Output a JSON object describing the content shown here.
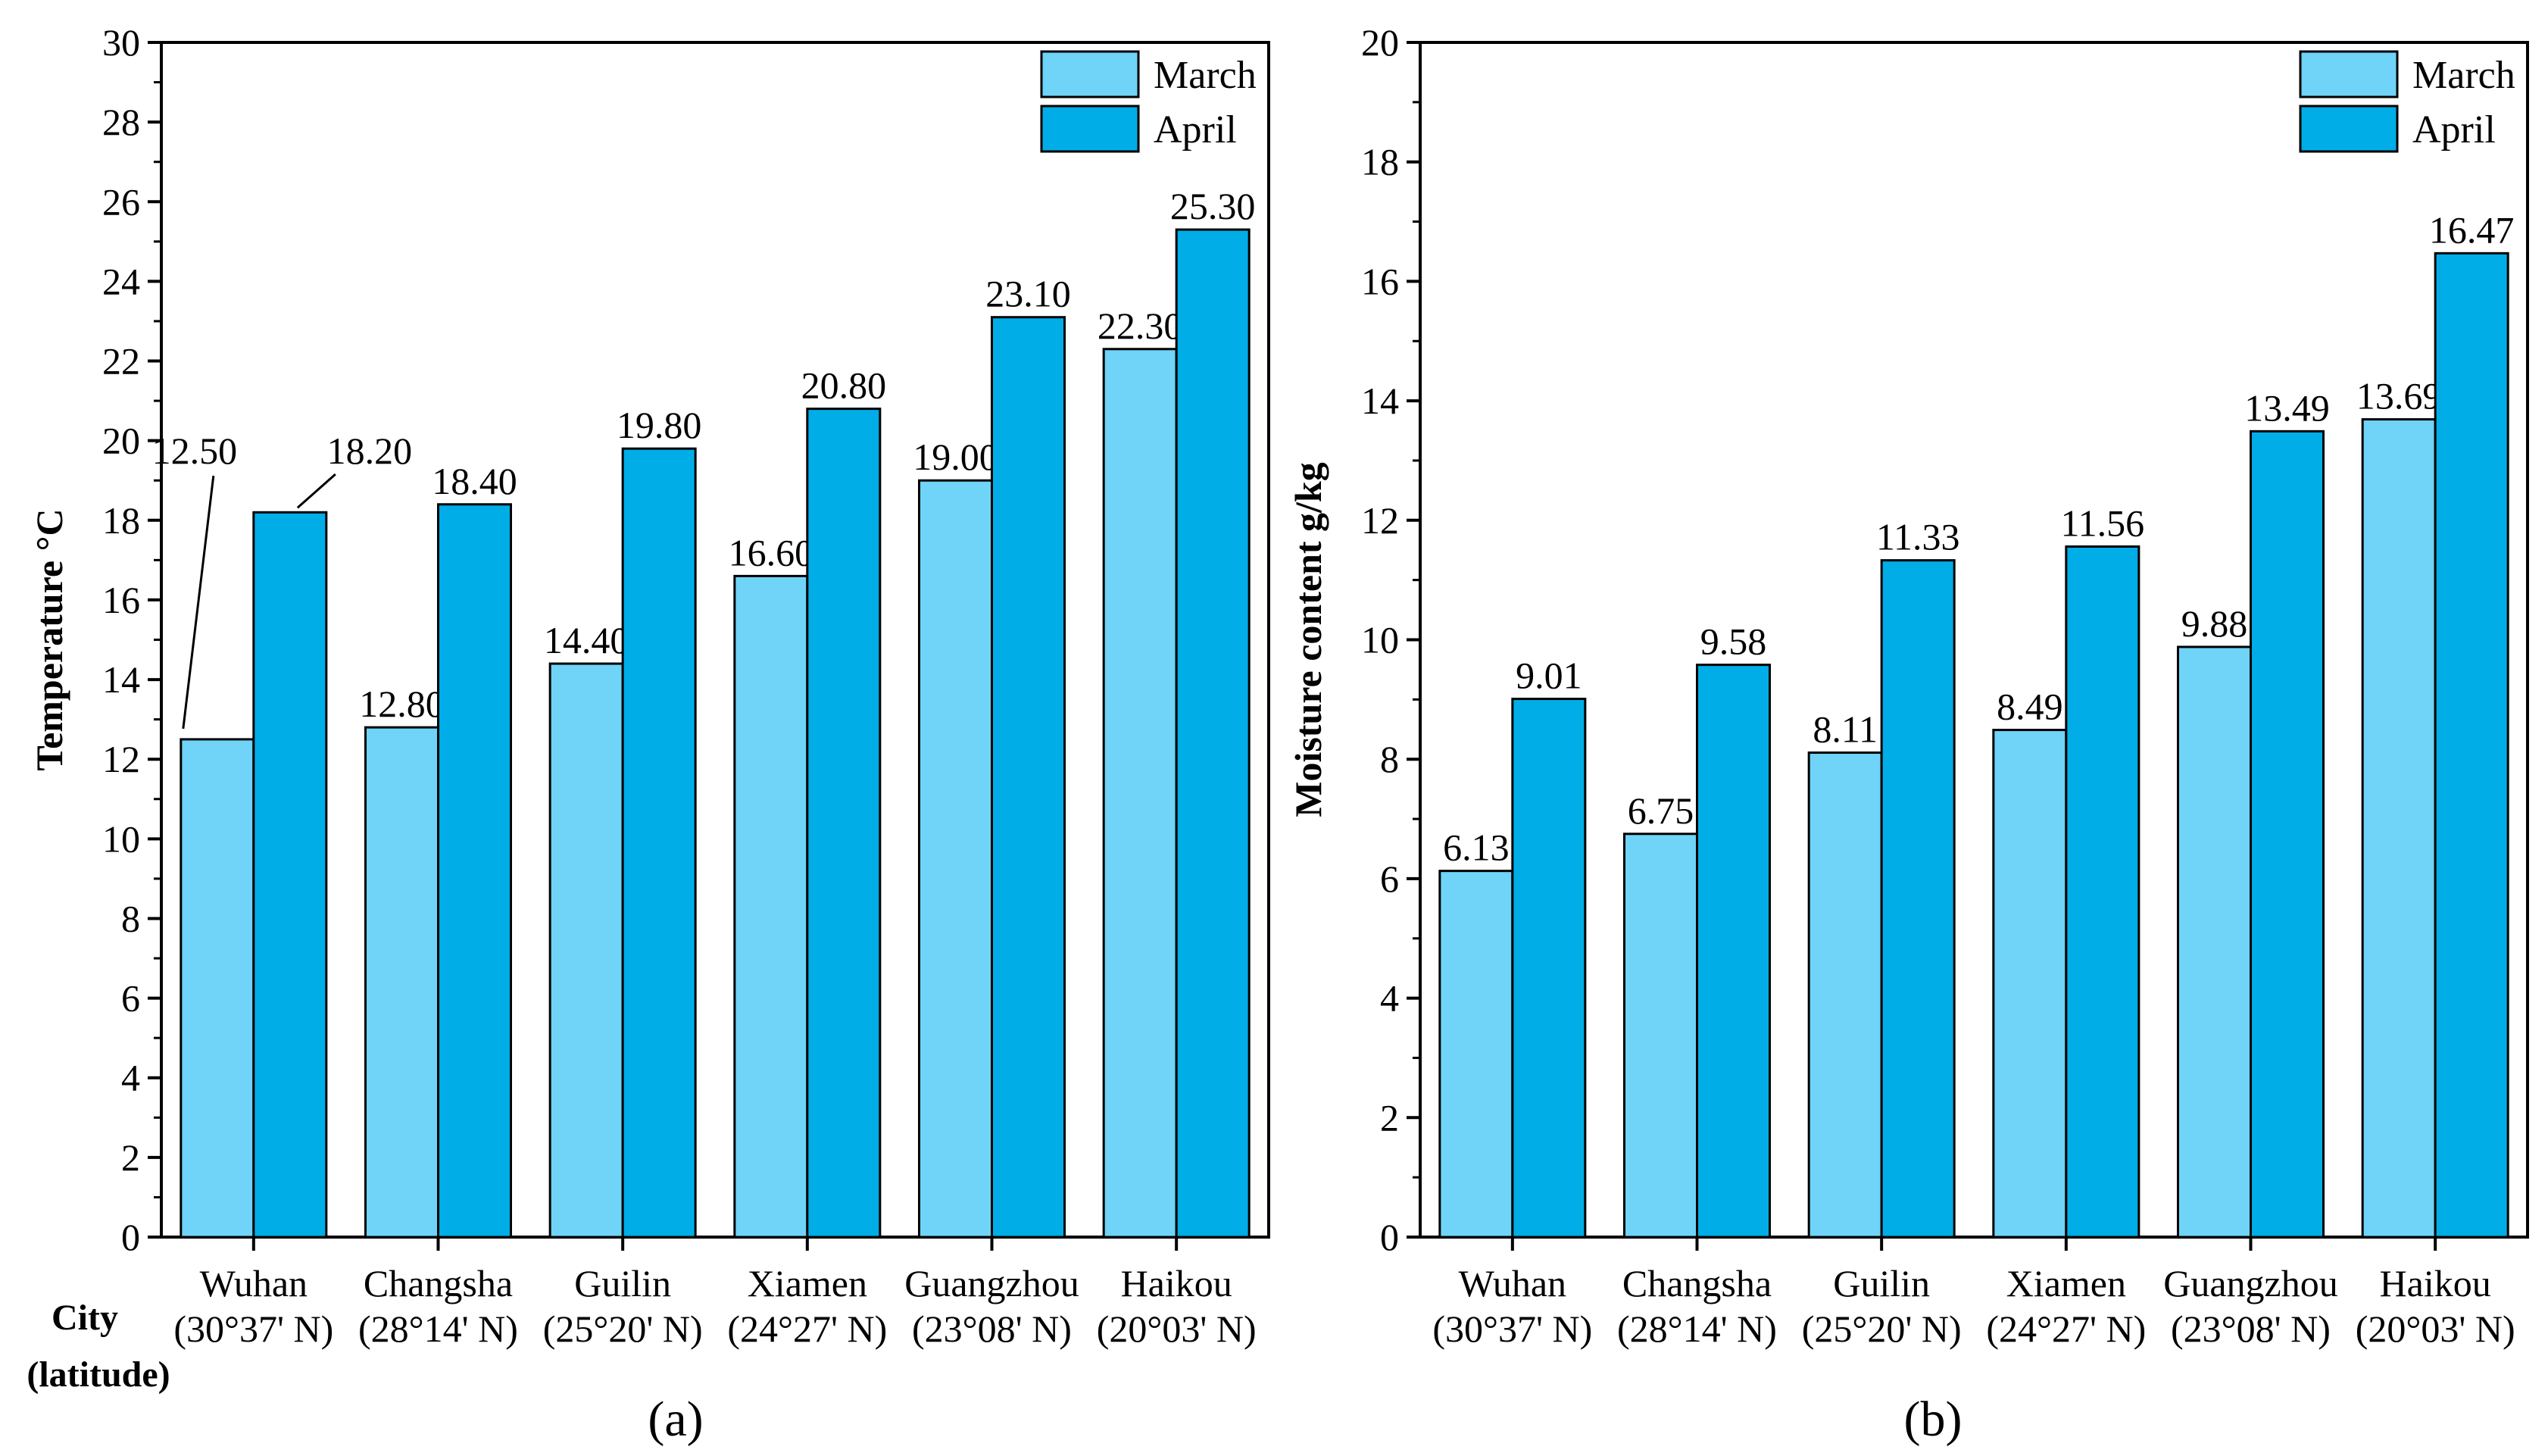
{
  "chart_data": [
    {
      "type": "bar",
      "panel_label": "(a)",
      "title": "",
      "xlabel": "City (latitude)",
      "xlabel_lines": [
        "City",
        "(latitude)"
      ],
      "ylabel": "Temperature °C",
      "ylim": [
        0,
        30
      ],
      "ytick_step": 2,
      "categories": [
        "Wuhan (30°37' N)",
        "Changsha (28°14' N)",
        "Guilin (25°20' N)",
        "Xiamen (24°27' N)",
        "Guangzhou (23°08' N)",
        "Haikou (20°03' N)"
      ],
      "category_names": [
        "Wuhan",
        "Changsha",
        "Guilin",
        "Xiamen",
        "Guangzhou",
        "Haikou"
      ],
      "category_latitudes": [
        "(30°37' N)",
        "(28°14' N)",
        "(25°20' N)",
        "(24°27' N)",
        "(23°08' N)",
        "(20°03' N)"
      ],
      "series": [
        {
          "name": "March",
          "color": "#6fd4f7",
          "values": [
            12.5,
            12.8,
            14.4,
            16.6,
            19.0,
            22.3
          ],
          "labels": [
            "12.50",
            "12.80",
            "14.40",
            "16.60",
            "19.00",
            "22.30"
          ]
        },
        {
          "name": "April",
          "color": "#00ade6",
          "values": [
            18.2,
            18.4,
            19.8,
            20.8,
            23.1,
            25.3
          ],
          "labels": [
            "18.20",
            "18.40",
            "19.80",
            "20.80",
            "23.10",
            "25.30"
          ]
        }
      ],
      "legend": "top-right"
    },
    {
      "type": "bar",
      "panel_label": "(b)",
      "title": "",
      "xlabel": "",
      "ylabel": "Moisture content  g/kg",
      "ylim": [
        0,
        20
      ],
      "ytick_step": 2,
      "categories": [
        "Wuhan (30°37' N)",
        "Changsha (28°14' N)",
        "Guilin (25°20' N)",
        "Xiamen (24°27' N)",
        "Guangzhou (23°08' N)",
        "Haikou (20°03' N)"
      ],
      "category_names": [
        "Wuhan",
        "Changsha",
        "Guilin",
        "Xiamen",
        "Guangzhou",
        "Haikou"
      ],
      "category_latitudes": [
        "(30°37' N)",
        "(28°14' N)",
        "(25°20' N)",
        "(24°27' N)",
        "(23°08' N)",
        "(20°03' N)"
      ],
      "series": [
        {
          "name": "March",
          "color": "#6fd4f7",
          "values": [
            6.13,
            6.75,
            8.11,
            8.49,
            9.88,
            13.69
          ],
          "labels": [
            "6.13",
            "6.75",
            "8.11",
            "8.49",
            "9.88",
            "13.69"
          ]
        },
        {
          "name": "April",
          "color": "#00ade6",
          "values": [
            9.01,
            9.58,
            11.33,
            11.56,
            13.49,
            16.47
          ],
          "labels": [
            "9.01",
            "9.58",
            "11.33",
            "11.56",
            "13.49",
            "16.47"
          ]
        }
      ],
      "legend": "top-right"
    }
  ]
}
